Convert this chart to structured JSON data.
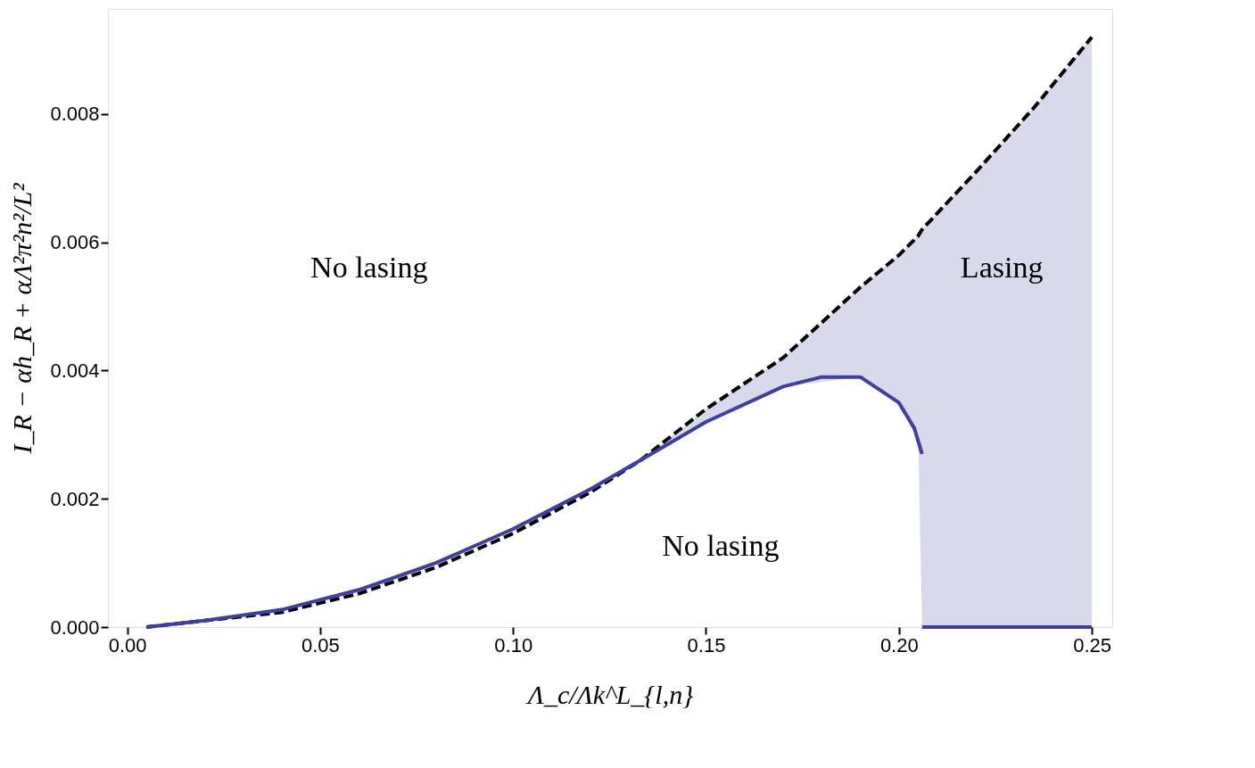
{
  "chart_data": {
    "type": "line",
    "xlabel": "Λ_c/Λk^L_{l,n}",
    "ylabel": "I_R − αh_R + αΛ²π²n²/L²",
    "xlim": [
      -0.005,
      0.2553
    ],
    "ylim": [
      0,
      0.00964
    ],
    "xticks": [
      {
        "value": 0,
        "label": "0.00"
      },
      {
        "value": 0.05,
        "label": "0.05"
      },
      {
        "value": 0.1,
        "label": "0.10"
      },
      {
        "value": 0.15,
        "label": "0.15"
      },
      {
        "value": 0.2,
        "label": "0.20"
      },
      {
        "value": 0.25,
        "label": "0.25"
      }
    ],
    "yticks": [
      {
        "value": 0,
        "label": "0.000"
      },
      {
        "value": 0.002,
        "label": "0.002"
      },
      {
        "value": 0.004,
        "label": "0.004"
      },
      {
        "value": 0.006,
        "label": "0.006"
      },
      {
        "value": 0.008,
        "label": "0.008"
      }
    ],
    "grid": false,
    "marker": "none",
    "series": [
      {
        "color": "#000000",
        "line_style": "dashed",
        "x": [
          0.005,
          0.02,
          0.04,
          0.06,
          0.08,
          0.1,
          0.12,
          0.133,
          0.15,
          0.17,
          0.19,
          0.2,
          0.205,
          0.206,
          0.22,
          0.235,
          0.25
        ],
        "values": [
          0,
          0.0001,
          0.00023,
          0.00052,
          0.00093,
          0.00146,
          0.0021,
          0.0026,
          0.0034,
          0.0042,
          0.0053,
          0.0058,
          0.0061,
          0.0062,
          0.0071,
          0.0081,
          0.0092
        ],
        "lower": [
          null,
          null,
          null,
          null,
          null,
          null,
          null,
          0.0026,
          0.0032,
          0.00375,
          0.0039,
          0.0035,
          0.0029,
          0,
          0,
          0,
          0
        ],
        "upper": [
          null,
          null,
          null,
          null,
          null,
          null,
          null,
          0.0026,
          0.0034,
          0.0042,
          0.0053,
          0.0058,
          0.0061,
          0.0062,
          0.0071,
          0.0081,
          0.0092
        ]
      },
      {
        "color": "#3f3f9f",
        "line_style": "solid",
        "x": [
          0.005,
          0.02,
          0.04,
          0.06,
          0.08,
          0.1,
          0.12,
          0.133,
          0.15,
          0.17,
          0.18,
          0.19,
          0.2,
          0.204,
          0.206
        ],
        "values": [
          0,
          0.0001,
          0.00027,
          0.00058,
          0.001,
          0.00153,
          0.00215,
          0.0026,
          0.0032,
          0.00375,
          0.0039,
          0.0039,
          0.0035,
          0.0031,
          0.0027
        ]
      },
      {
        "color": "#3f3f9f",
        "line_style": "solid",
        "x": [
          0.206,
          0.25
        ],
        "values": [
          0,
          0
        ]
      }
    ],
    "annotations": [
      "No lasing",
      "No lasing",
      "Lasing"
    ]
  }
}
